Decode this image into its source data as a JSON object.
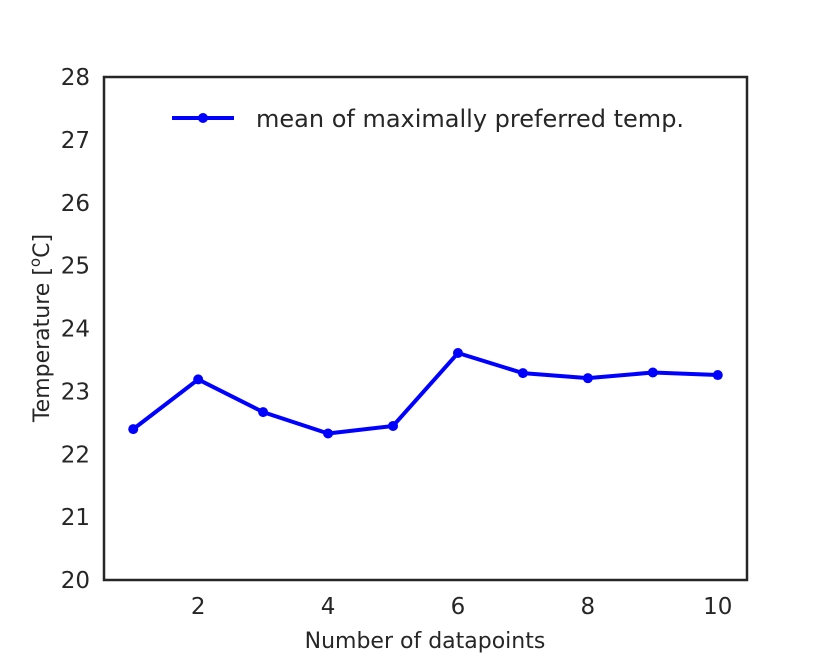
{
  "chart_data": {
    "type": "line",
    "xlabel": "Number of datapoints",
    "ylabel": "Temperature [",
    "ylabel_sup": "o",
    "ylabel_end": "C]",
    "xlim": [
      0.55,
      10.45
    ],
    "ylim": [
      20,
      28
    ],
    "xticks": [
      "2",
      "4",
      "6",
      "8",
      "10"
    ],
    "yticks": [
      "20",
      "21",
      "22",
      "23",
      "24",
      "25",
      "26",
      "27",
      "28"
    ],
    "grid": false,
    "legend_position": "top-right",
    "series": [
      {
        "name": "mean of maximally preferred temp.",
        "color": "#0000ff",
        "marker": "circle",
        "x": [
          1,
          2,
          3,
          4,
          5,
          6,
          7,
          8,
          9,
          10
        ],
        "y": [
          22.4,
          23.19,
          22.67,
          22.33,
          22.45,
          23.61,
          23.29,
          23.21,
          23.3,
          23.26
        ]
      }
    ]
  }
}
